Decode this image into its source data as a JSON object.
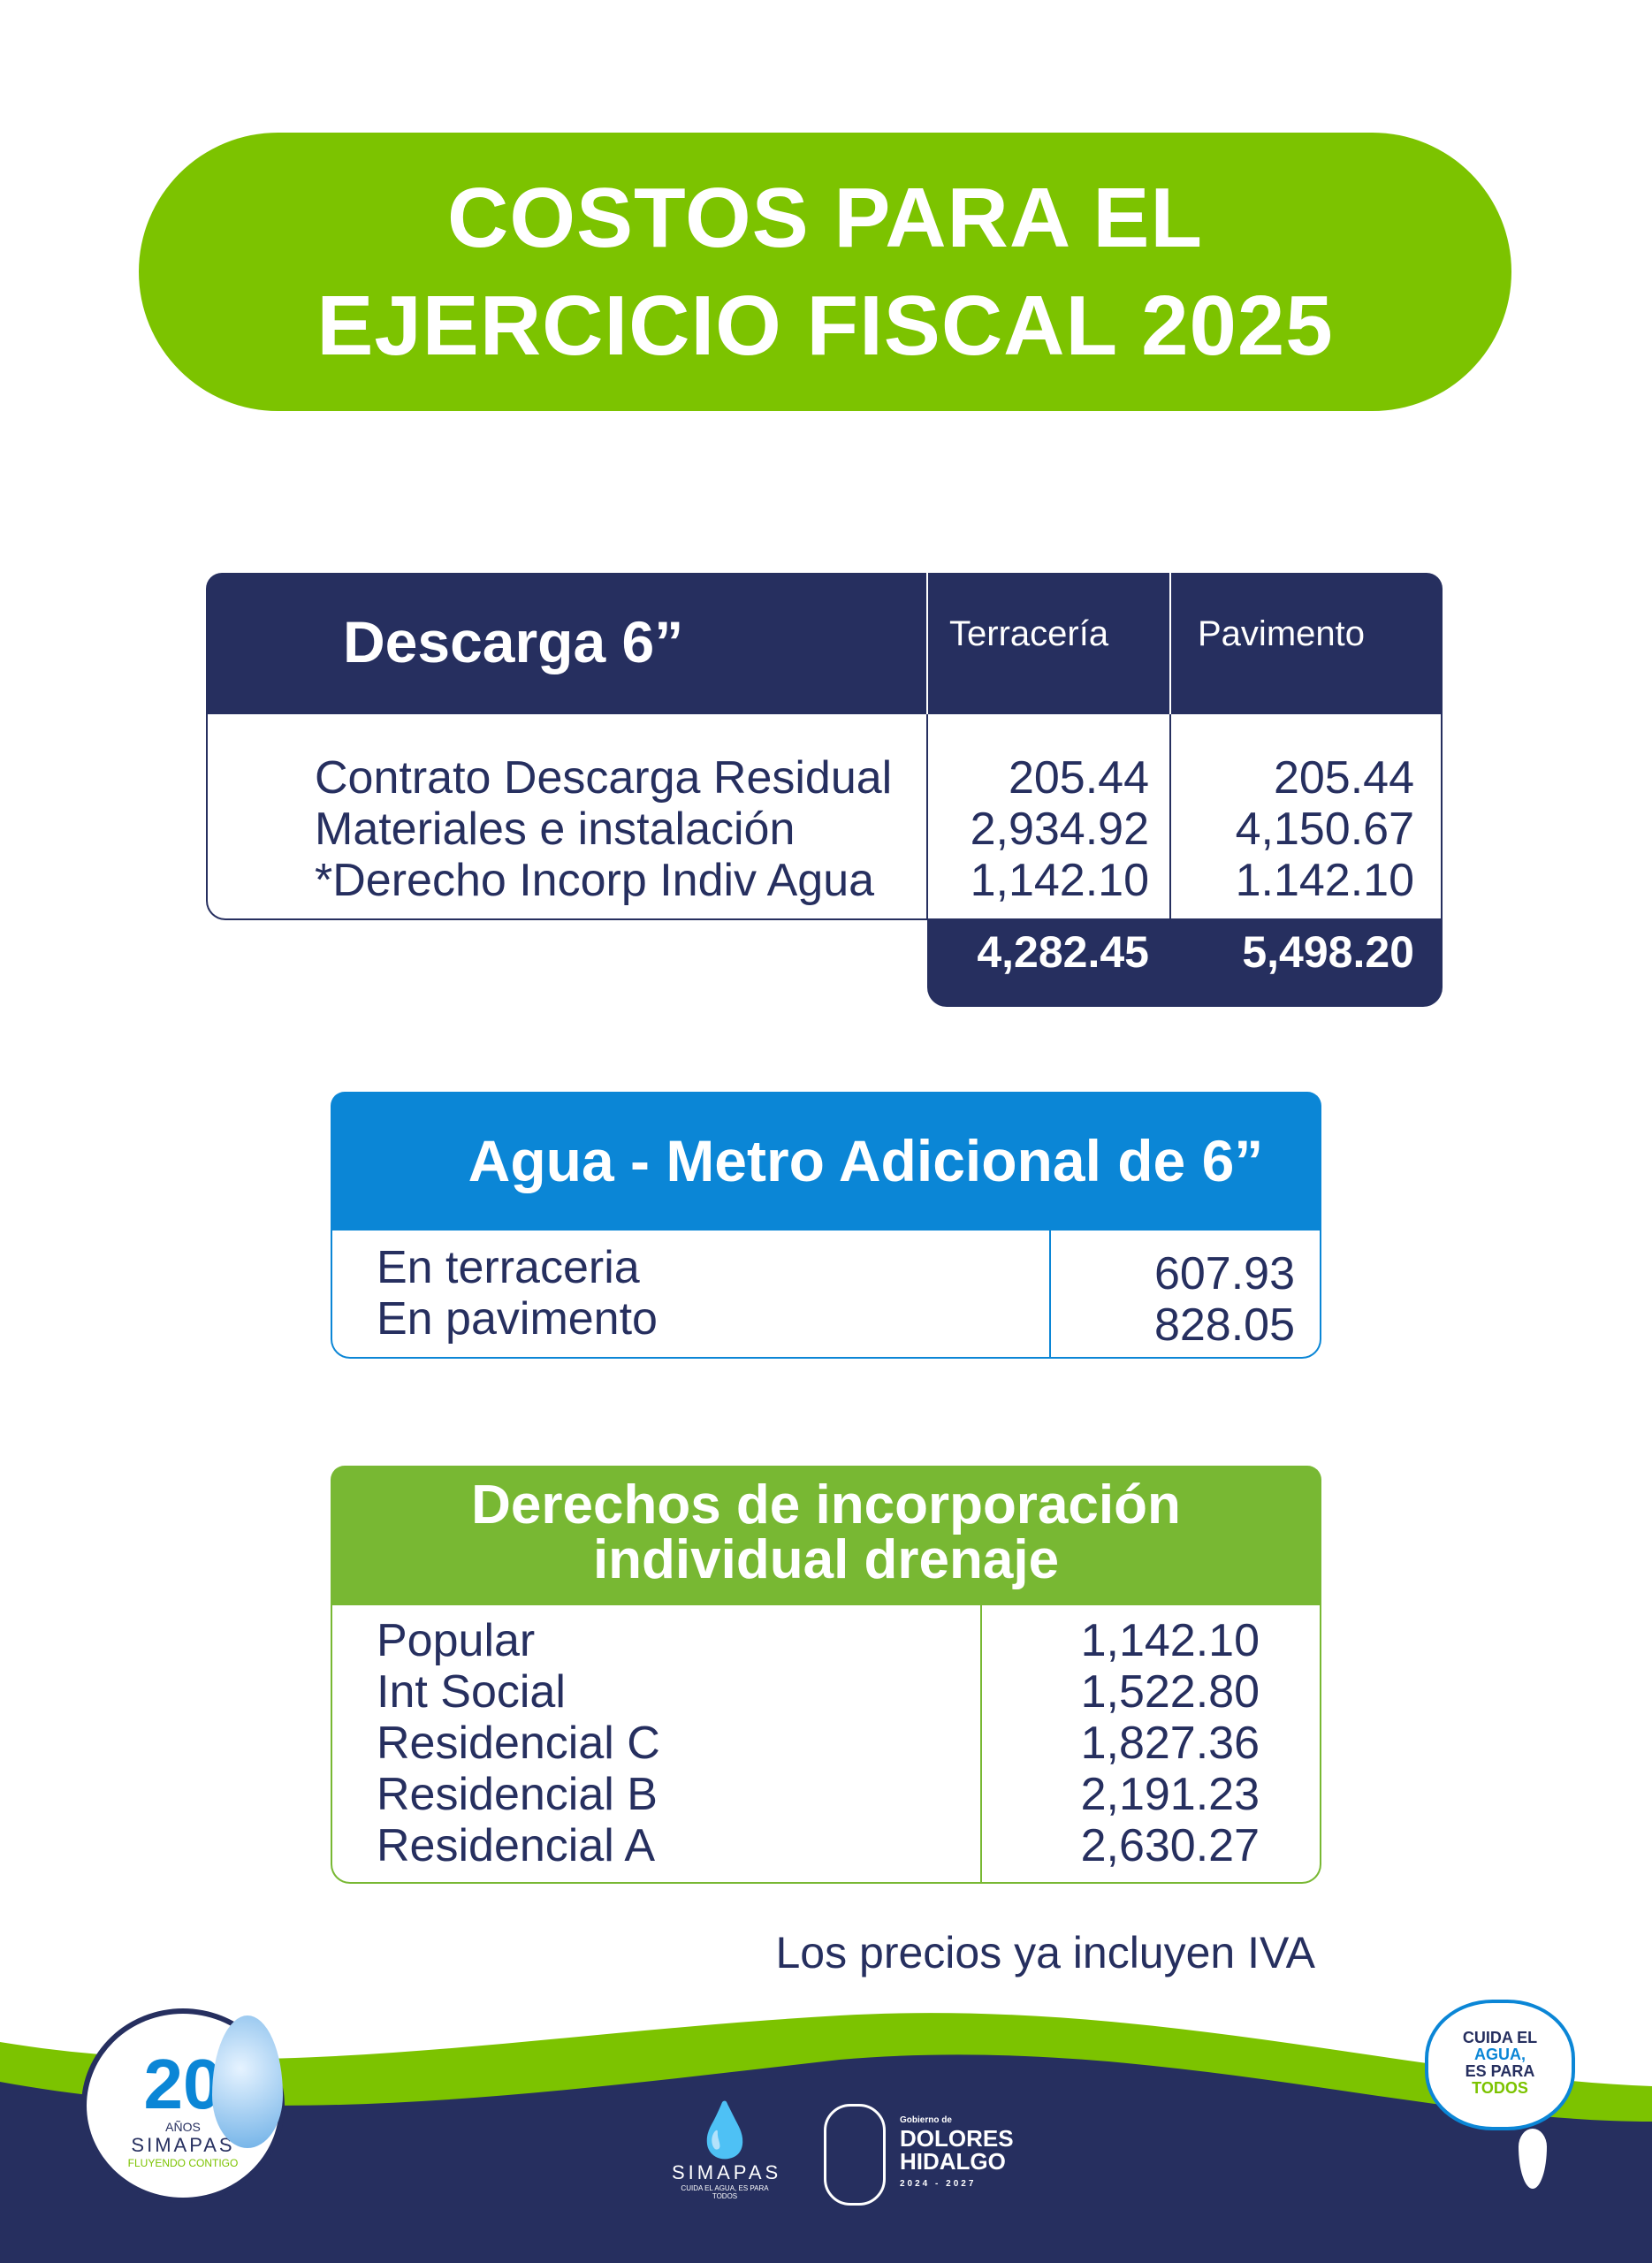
{
  "title": {
    "line1": "COSTOS PARA EL",
    "line2": "EJERCICIO FISCAL 2025"
  },
  "descarga": {
    "title": "Descarga 6”",
    "columns": [
      "Terracería",
      "Pavimento"
    ],
    "rows": [
      {
        "label": "Contrato Descarga Residual",
        "terraceria": "205.44",
        "pavimento": "205.44"
      },
      {
        "label": "Materiales e instalación",
        "terraceria": "2,934.92",
        "pavimento": "4,150.67"
      },
      {
        "label": "*Derecho Incorp Indiv Agua",
        "terraceria": "1,142.10",
        "pavimento": "1.142.10"
      }
    ],
    "totals": {
      "terraceria": "4,282.45",
      "pavimento": "5,498.20"
    }
  },
  "agua": {
    "title": "Agua - Metro Adicional de 6”",
    "rows": [
      {
        "label": "En terraceria",
        "value": "607.93"
      },
      {
        "label": "En pavimento",
        "value": "828.05"
      }
    ]
  },
  "drenaje": {
    "title_line1": "Derechos de incorporación",
    "title_line2": "individual drenaje",
    "rows": [
      {
        "label": "Popular",
        "value": "1,142.10"
      },
      {
        "label": "Int Social",
        "value": "1,522.80"
      },
      {
        "label": "Residencial C",
        "value": "1,827.36"
      },
      {
        "label": "Residencial B",
        "value": "2,191.23"
      },
      {
        "label": "Residencial A",
        "value": "2,630.27"
      }
    ]
  },
  "note": "Los precios ya incluyen IVA",
  "footer": {
    "anniv_logo": {
      "number": "20",
      "years": "AÑOS",
      "name": "SIMAPAS",
      "slogan": "FLUYENDO CONTIGO"
    },
    "simapas_logo": {
      "name": "SIMAPAS",
      "slogan": "CUIDA EL AGUA, ES PARA TODOS"
    },
    "gov_logo": {
      "pre": "Gobierno de",
      "name1": "DOLORES",
      "name2": "HIDALGO",
      "period": "2024 - 2027"
    },
    "campaign_logo": {
      "l1": "CUIDA EL",
      "l2": "AGUA,",
      "l3": "ES PARA",
      "l4": "TODOS"
    },
    "colors": {
      "navy": "#262f5f",
      "green": "#7cc300",
      "blue": "#0b86d6"
    }
  }
}
